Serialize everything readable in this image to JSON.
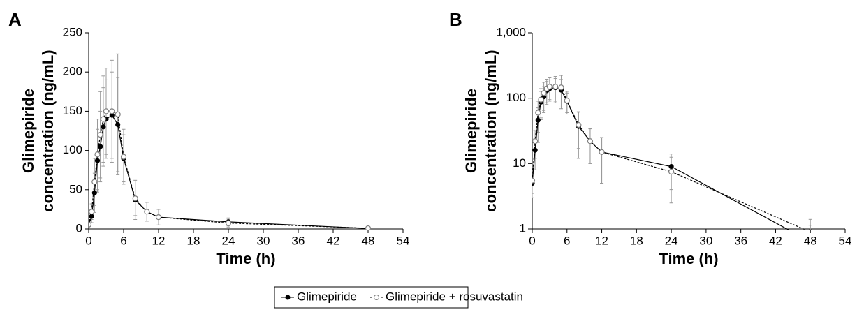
{
  "chart_data": [
    {
      "type": "line",
      "label": "A",
      "xlabel": "Time (h)",
      "ylabel": [
        "Glimepiride",
        "concentration (ng/mL)"
      ],
      "x": [
        0,
        0.5,
        1,
        1.5,
        2,
        2.5,
        3,
        4,
        5,
        6,
        8,
        10,
        12,
        24,
        48
      ],
      "series": [
        {
          "name": "Glimepiride",
          "color": "#000000",
          "dashed": false,
          "marker": "filled",
          "values": [
            5,
            16,
            46,
            87,
            105,
            130,
            140,
            145,
            133,
            90,
            37,
            22,
            15,
            9,
            0.64
          ],
          "errors": [
            2,
            8,
            25,
            40,
            45,
            50,
            50,
            55,
            60,
            30,
            25,
            12,
            10,
            5,
            0.5
          ]
        },
        {
          "name": "Glimepiride + rosuvastatin",
          "color": "#808080",
          "dashed": true,
          "marker": "open",
          "values": [
            5.5,
            22,
            60,
            95,
            120,
            140,
            150,
            150,
            146,
            92,
            39,
            22,
            15,
            7.5,
            0.9
          ],
          "errors": [
            2,
            10,
            30,
            45,
            55,
            55,
            55,
            65,
            77,
            35,
            22,
            12,
            10,
            5,
            0.5
          ]
        }
      ],
      "xlim": [
        0,
        54
      ],
      "xticks": [
        0,
        6,
        12,
        18,
        24,
        30,
        36,
        42,
        48,
        54
      ],
      "ylim": [
        0,
        250
      ],
      "yticks": [
        0,
        50,
        100,
        150,
        200,
        250
      ],
      "log": false
    },
    {
      "type": "line",
      "label": "B",
      "xlabel": "Time (h)",
      "ylabel": [
        "Glimepiride",
        "concentration (ng/mL)"
      ],
      "x": [
        0,
        0.5,
        1,
        1.5,
        2,
        2.5,
        3,
        4,
        5,
        6,
        8,
        10,
        12,
        24,
        48
      ],
      "series": [
        {
          "color": "#000000",
          "dashed": false,
          "marker": "filled",
          "values": [
            5,
            16,
            46,
            87,
            105,
            130,
            140,
            145,
            133,
            90,
            37,
            22,
            15,
            9,
            0.64
          ],
          "errors": [
            2,
            8,
            25,
            40,
            45,
            50,
            50,
            55,
            60,
            30,
            25,
            12,
            10,
            5,
            0.5
          ]
        },
        {
          "color": "#808080",
          "dashed": true,
          "marker": "open",
          "values": [
            5.5,
            22,
            60,
            95,
            120,
            140,
            150,
            150,
            146,
            92,
            39,
            22,
            15,
            7.5,
            0.9
          ],
          "errors": [
            2,
            10,
            30,
            45,
            55,
            55,
            55,
            65,
            77,
            35,
            22,
            12,
            10,
            5,
            0.5
          ]
        }
      ],
      "xlim": [
        0,
        54
      ],
      "xticks": [
        0,
        6,
        12,
        18,
        24,
        30,
        36,
        42,
        48,
        54
      ],
      "ylim": [
        1,
        1000
      ],
      "yticks": [
        1,
        10,
        100,
        {
          "value": 1000,
          "label": "1,000"
        }
      ],
      "log": true
    }
  ]
}
